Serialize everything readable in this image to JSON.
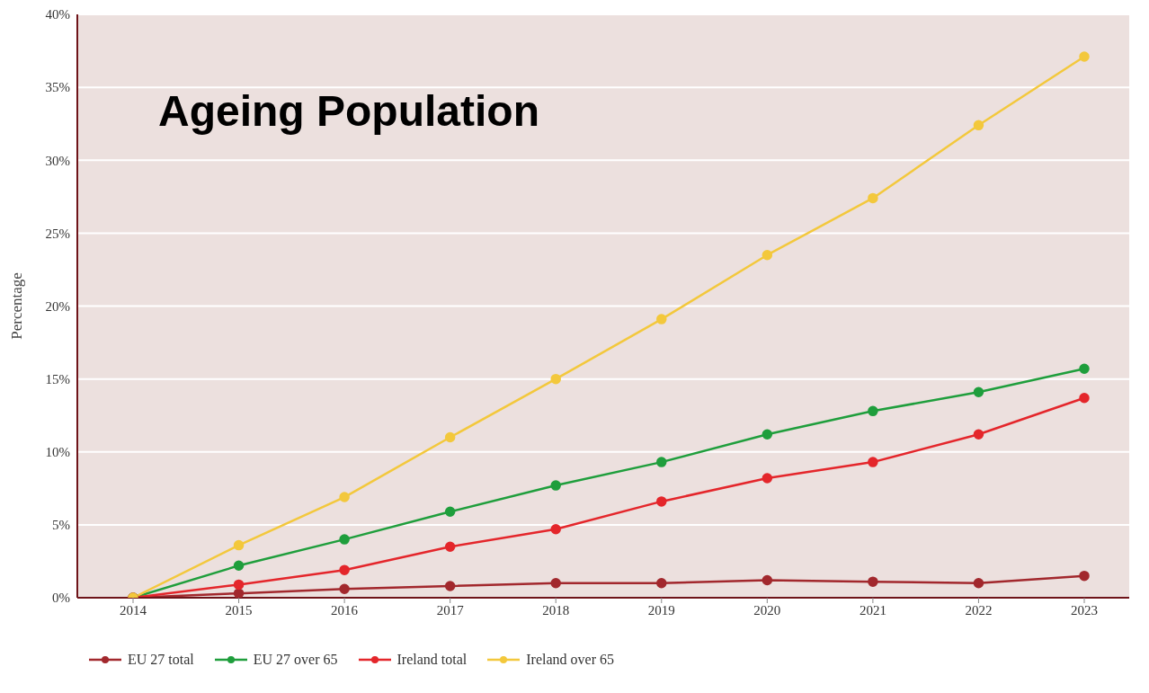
{
  "chart_data": {
    "type": "line",
    "title": "Ageing Population",
    "ylabel": "Percentage",
    "categories": [
      "2014",
      "2015",
      "2016",
      "2017",
      "2018",
      "2019",
      "2020",
      "2021",
      "2022",
      "2023"
    ],
    "series": [
      {
        "name": "EU 27 total",
        "color": "#a2282d",
        "values": [
          0,
          0.3,
          0.6,
          0.8,
          1.0,
          1.0,
          1.2,
          1.1,
          1.0,
          1.5
        ]
      },
      {
        "name": "EU 27 over 65",
        "color": "#1f9e3c",
        "values": [
          0,
          2.2,
          4.0,
          5.9,
          7.7,
          9.3,
          11.2,
          12.8,
          14.1,
          15.7
        ]
      },
      {
        "name": "Ireland total",
        "color": "#e4262b",
        "values": [
          0,
          0.9,
          1.9,
          3.5,
          4.7,
          6.6,
          8.2,
          9.3,
          11.2,
          13.7
        ]
      },
      {
        "name": "Ireland over 65",
        "color": "#f3c83c",
        "values": [
          0,
          3.6,
          6.9,
          11.0,
          15.0,
          19.1,
          23.5,
          27.4,
          32.4,
          37.1
        ]
      }
    ],
    "ylim": [
      0,
      40
    ],
    "yticks": [
      {
        "value": 0,
        "label": "0%"
      },
      {
        "value": 5,
        "label": "5%"
      },
      {
        "value": 10,
        "label": "10%"
      },
      {
        "value": 15,
        "label": "15%"
      },
      {
        "value": 20,
        "label": "20%"
      },
      {
        "value": 25,
        "label": "25%"
      },
      {
        "value": 30,
        "label": "30%"
      },
      {
        "value": 35,
        "label": "35%"
      },
      {
        "value": 40,
        "label": "40%"
      }
    ],
    "grid": "y",
    "legend": "bottom",
    "marker": "circle",
    "line_style": "solid"
  }
}
